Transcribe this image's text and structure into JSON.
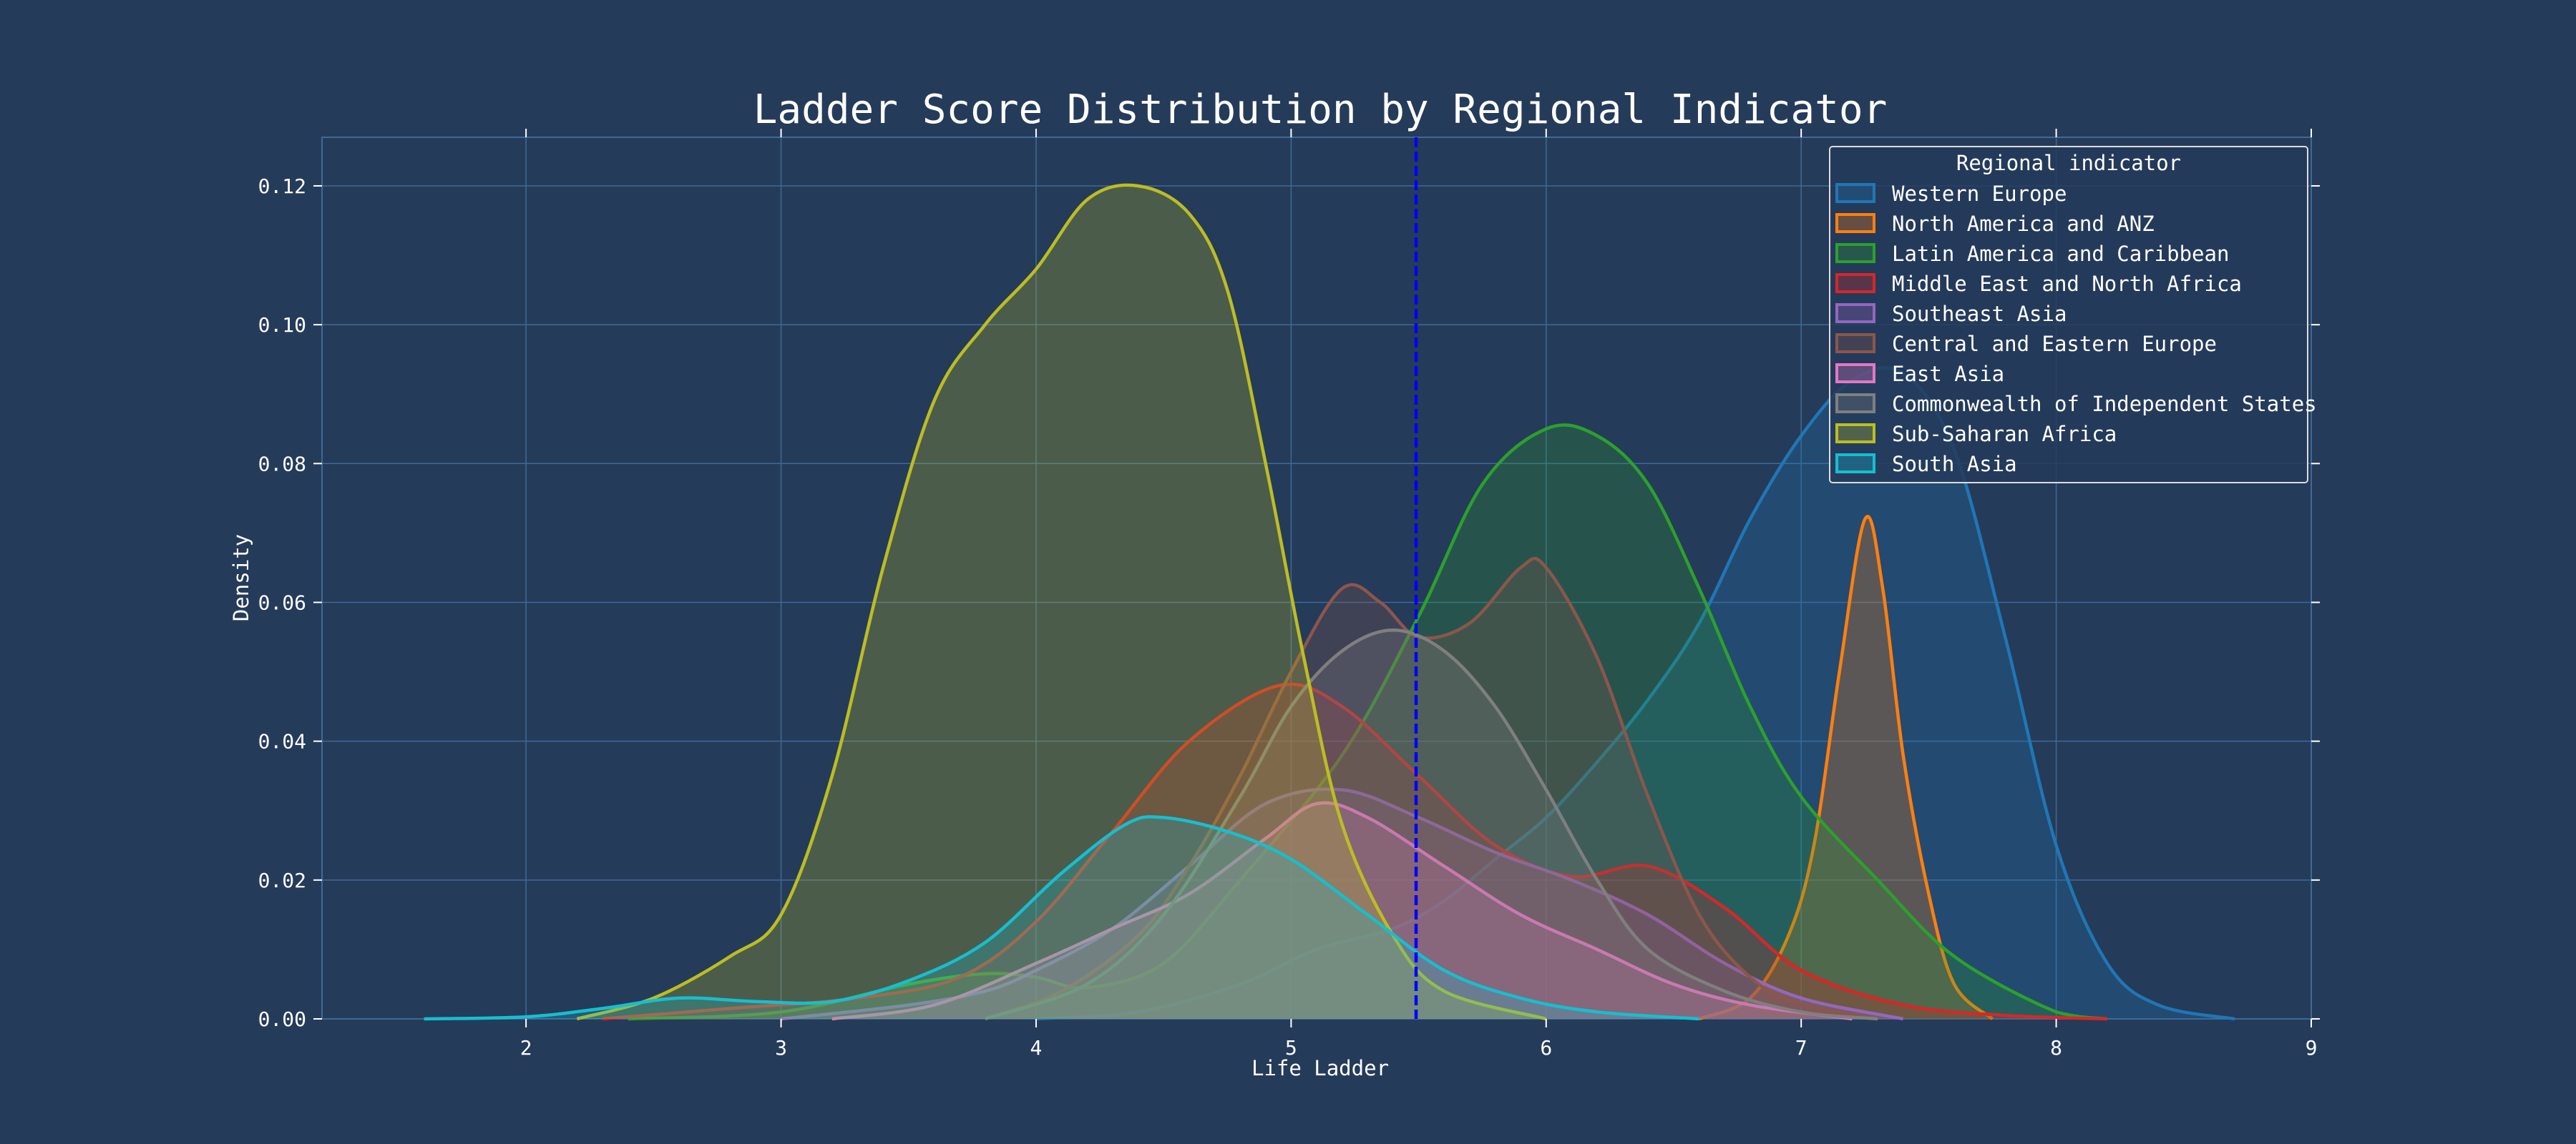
{
  "chart_data": {
    "type": "area",
    "title": "Ladder Score Distribution by Regional Indicator",
    "xlabel": "Life Ladder",
    "ylabel": "Density",
    "xlim": [
      1.2,
      9.0
    ],
    "ylim": [
      0.0,
      0.127
    ],
    "xticks": [
      "2",
      "3",
      "4",
      "5",
      "6",
      "7",
      "8",
      "9"
    ],
    "yticks": [
      "0.00",
      "0.02",
      "0.04",
      "0.06",
      "0.08",
      "0.10",
      "0.12"
    ],
    "grid": true,
    "legend_position": "top-right",
    "legend_title": "Regional indicator",
    "reference_line": {
      "x": 5.49,
      "color": "#0000ff",
      "style": "dashed"
    },
    "series": [
      {
        "name": "Western Europe",
        "color": "#1f77b4",
        "points": [
          [
            4.0,
            0.0
          ],
          [
            4.4,
            0.001
          ],
          [
            4.8,
            0.005
          ],
          [
            5.1,
            0.01
          ],
          [
            5.4,
            0.013
          ],
          [
            5.6,
            0.017
          ],
          [
            5.8,
            0.023
          ],
          [
            6.0,
            0.029
          ],
          [
            6.2,
            0.037
          ],
          [
            6.4,
            0.046
          ],
          [
            6.6,
            0.057
          ],
          [
            6.8,
            0.072
          ],
          [
            7.0,
            0.084
          ],
          [
            7.2,
            0.092
          ],
          [
            7.4,
            0.093
          ],
          [
            7.6,
            0.082
          ],
          [
            7.8,
            0.055
          ],
          [
            8.0,
            0.025
          ],
          [
            8.2,
            0.008
          ],
          [
            8.4,
            0.002
          ],
          [
            8.7,
            0.0
          ]
        ]
      },
      {
        "name": "North America and ANZ",
        "color": "#ff7f0e",
        "points": [
          [
            6.6,
            0.0
          ],
          [
            6.8,
            0.003
          ],
          [
            6.95,
            0.012
          ],
          [
            7.05,
            0.025
          ],
          [
            7.15,
            0.05
          ],
          [
            7.25,
            0.072
          ],
          [
            7.32,
            0.062
          ],
          [
            7.4,
            0.038
          ],
          [
            7.5,
            0.018
          ],
          [
            7.6,
            0.005
          ],
          [
            7.75,
            0.0
          ]
        ]
      },
      {
        "name": "Latin America and Caribbean",
        "color": "#2ca02c",
        "points": [
          [
            2.4,
            0.0
          ],
          [
            3.0,
            0.001
          ],
          [
            3.5,
            0.005
          ],
          [
            3.8,
            0.0065
          ],
          [
            4.0,
            0.006
          ],
          [
            4.2,
            0.0045
          ],
          [
            4.5,
            0.008
          ],
          [
            4.8,
            0.02
          ],
          [
            5.2,
            0.038
          ],
          [
            5.5,
            0.058
          ],
          [
            5.75,
            0.077
          ],
          [
            6.0,
            0.085
          ],
          [
            6.2,
            0.084
          ],
          [
            6.4,
            0.077
          ],
          [
            6.6,
            0.062
          ],
          [
            6.8,
            0.045
          ],
          [
            7.0,
            0.032
          ],
          [
            7.3,
            0.02
          ],
          [
            7.6,
            0.009
          ],
          [
            8.0,
            0.001
          ],
          [
            8.2,
            0.0
          ]
        ]
      },
      {
        "name": "Middle East and North Africa",
        "color": "#d62728",
        "points": [
          [
            2.3,
            0.0
          ],
          [
            2.8,
            0.0015
          ],
          [
            3.3,
            0.003
          ],
          [
            3.7,
            0.006
          ],
          [
            4.0,
            0.014
          ],
          [
            4.3,
            0.027
          ],
          [
            4.6,
            0.04
          ],
          [
            4.95,
            0.048
          ],
          [
            5.2,
            0.045
          ],
          [
            5.5,
            0.035
          ],
          [
            5.8,
            0.025
          ],
          [
            6.1,
            0.0205
          ],
          [
            6.4,
            0.022
          ],
          [
            6.7,
            0.016
          ],
          [
            7.0,
            0.007
          ],
          [
            7.4,
            0.002
          ],
          [
            7.8,
            0.0005
          ],
          [
            8.2,
            0.0
          ]
        ]
      },
      {
        "name": "Southeast Asia",
        "color": "#9467bd",
        "points": [
          [
            3.0,
            0.0
          ],
          [
            3.5,
            0.002
          ],
          [
            3.8,
            0.004
          ],
          [
            4.0,
            0.007
          ],
          [
            4.3,
            0.013
          ],
          [
            4.6,
            0.022
          ],
          [
            4.9,
            0.031
          ],
          [
            5.2,
            0.033
          ],
          [
            5.5,
            0.029
          ],
          [
            5.8,
            0.024
          ],
          [
            6.1,
            0.02
          ],
          [
            6.4,
            0.015
          ],
          [
            6.7,
            0.008
          ],
          [
            7.0,
            0.003
          ],
          [
            7.4,
            0.0
          ]
        ]
      },
      {
        "name": "Central and Eastern Europe",
        "color": "#8c564b",
        "points": [
          [
            3.8,
            0.0
          ],
          [
            4.1,
            0.004
          ],
          [
            4.4,
            0.012
          ],
          [
            4.6,
            0.022
          ],
          [
            4.8,
            0.035
          ],
          [
            5.0,
            0.05
          ],
          [
            5.2,
            0.062
          ],
          [
            5.35,
            0.06
          ],
          [
            5.5,
            0.055
          ],
          [
            5.7,
            0.057
          ],
          [
            5.9,
            0.065
          ],
          [
            6.0,
            0.065
          ],
          [
            6.2,
            0.052
          ],
          [
            6.4,
            0.032
          ],
          [
            6.6,
            0.015
          ],
          [
            6.8,
            0.006
          ],
          [
            7.0,
            0.002
          ],
          [
            7.3,
            0.0
          ]
        ]
      },
      {
        "name": "East Asia",
        "color": "#e377c2",
        "points": [
          [
            3.2,
            0.0
          ],
          [
            3.6,
            0.002
          ],
          [
            4.0,
            0.008
          ],
          [
            4.3,
            0.013
          ],
          [
            4.6,
            0.018
          ],
          [
            4.9,
            0.026
          ],
          [
            5.1,
            0.031
          ],
          [
            5.3,
            0.029
          ],
          [
            5.6,
            0.022
          ],
          [
            5.9,
            0.015
          ],
          [
            6.2,
            0.01
          ],
          [
            6.5,
            0.005
          ],
          [
            6.8,
            0.002
          ],
          [
            7.2,
            0.0
          ]
        ]
      },
      {
        "name": "Commonwealth of Independent States",
        "color": "#7f7f7f",
        "points": [
          [
            3.8,
            0.0
          ],
          [
            4.2,
            0.005
          ],
          [
            4.5,
            0.015
          ],
          [
            4.8,
            0.032
          ],
          [
            5.0,
            0.045
          ],
          [
            5.2,
            0.053
          ],
          [
            5.4,
            0.056
          ],
          [
            5.6,
            0.053
          ],
          [
            5.8,
            0.045
          ],
          [
            6.0,
            0.033
          ],
          [
            6.2,
            0.02
          ],
          [
            6.4,
            0.01
          ],
          [
            6.7,
            0.004
          ],
          [
            7.0,
            0.001
          ],
          [
            7.3,
            0.0
          ]
        ]
      },
      {
        "name": "Sub-Saharan Africa",
        "color": "#bcbd22",
        "points": [
          [
            2.2,
            0.0
          ],
          [
            2.5,
            0.003
          ],
          [
            2.8,
            0.009
          ],
          [
            3.0,
            0.015
          ],
          [
            3.2,
            0.035
          ],
          [
            3.4,
            0.065
          ],
          [
            3.6,
            0.089
          ],
          [
            3.8,
            0.1
          ],
          [
            4.0,
            0.108
          ],
          [
            4.2,
            0.118
          ],
          [
            4.4,
            0.12
          ],
          [
            4.6,
            0.116
          ],
          [
            4.75,
            0.105
          ],
          [
            4.9,
            0.08
          ],
          [
            5.05,
            0.052
          ],
          [
            5.2,
            0.028
          ],
          [
            5.4,
            0.012
          ],
          [
            5.6,
            0.004
          ],
          [
            6.0,
            0.0
          ]
        ]
      },
      {
        "name": "South Asia",
        "color": "#17becf",
        "points": [
          [
            1.6,
            0.0
          ],
          [
            2.0,
            0.0003
          ],
          [
            2.3,
            0.0015
          ],
          [
            2.6,
            0.003
          ],
          [
            2.9,
            0.0025
          ],
          [
            3.2,
            0.0025
          ],
          [
            3.5,
            0.0055
          ],
          [
            3.8,
            0.011
          ],
          [
            4.1,
            0.021
          ],
          [
            4.35,
            0.028
          ],
          [
            4.5,
            0.029
          ],
          [
            4.75,
            0.027
          ],
          [
            5.0,
            0.023
          ],
          [
            5.3,
            0.015
          ],
          [
            5.6,
            0.007
          ],
          [
            5.9,
            0.003
          ],
          [
            6.2,
            0.001
          ],
          [
            6.6,
            0.0
          ]
        ]
      }
    ]
  }
}
